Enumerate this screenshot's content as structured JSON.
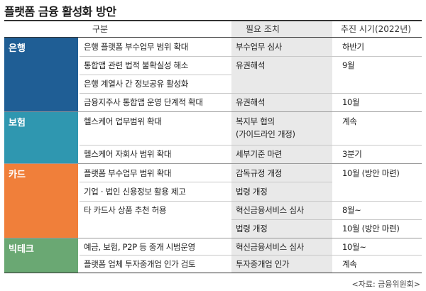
{
  "title": "플랫폼 금융 활성화 방안",
  "header": {
    "col1": "구분",
    "col2": "필요 조치",
    "col3": "추진 시기(2022년)"
  },
  "colors": {
    "bank": "#1f5e95",
    "insurance": "#2f97b0",
    "card": "#f07f3a",
    "bigtech": "#6aa873"
  },
  "categories": [
    {
      "label": "은행"
    },
    {
      "label": "보험"
    },
    {
      "label": "카드"
    },
    {
      "label": "빅테크"
    }
  ],
  "rows": [
    {
      "item": "은행 플랫폼 부수업무 범위 확대",
      "action": "부수업무 심사",
      "timing": "하반기"
    },
    {
      "item": "통합앱 관련 법적 불확실성 해소",
      "action": "유권해석",
      "timing": "9월"
    },
    {
      "item": "은행 계열사 간 정보공유 활성화",
      "action": "",
      "timing": ""
    },
    {
      "item": "금융지주사 통합앱 운영 단계적 확대",
      "action": "유권해석",
      "timing": "10월"
    },
    {
      "item": "헬스케어 업무범위 확대",
      "action": "복지부 협의",
      "action2": "(가이드라인 개정)",
      "timing": "계속"
    },
    {
      "item": "헬스케어 자회사 범위 확대",
      "action": "세부기준 마련",
      "timing": "3분기"
    },
    {
      "item": "플랫폼 부수업무 범위 확대",
      "action": "감독규정 개정",
      "timing": "10월 (방안 마련)"
    },
    {
      "item": "기업 · 법인 신용정보 활용 제고",
      "action": "법령 개정",
      "timing": ""
    },
    {
      "item": "타 카드사 상품 추천 허용",
      "action": "혁신금융서비스 심사",
      "timing": "8월~"
    },
    {
      "item": "",
      "action": "법령 개정",
      "timing": "10월 (방안 마련)"
    },
    {
      "item": "예금, 보험, P2P 등 중개 시범운영",
      "action": "혁신금융서비스 심사",
      "timing": "10월~"
    },
    {
      "item": "플랫폼 업체 투자중개업 인가 검토",
      "action": "투자중개업 인가",
      "timing": "계속"
    }
  ],
  "source": "<자료: 금융위원회>"
}
